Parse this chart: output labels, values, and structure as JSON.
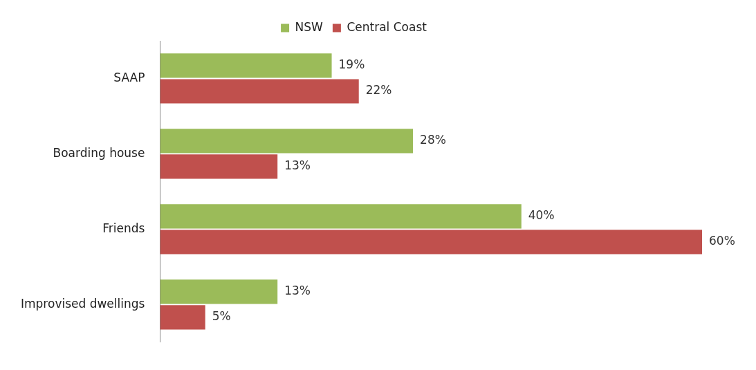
{
  "chart_data": {
    "type": "bar",
    "orientation": "horizontal",
    "categories": [
      "SAAP",
      "Boarding house",
      "Friends",
      "Improvised dwellings"
    ],
    "series": [
      {
        "name": "NSW",
        "color": "#9bbb59",
        "values": [
          19,
          28,
          40,
          13
        ],
        "value_labels": [
          "19%",
          "28%",
          "40%",
          "13%"
        ]
      },
      {
        "name": "Central Coast",
        "color": "#c0504d",
        "values": [
          22,
          13,
          60,
          5
        ],
        "value_labels": [
          "22%",
          "13%",
          "60%",
          "5%"
        ]
      }
    ],
    "xlim": [
      0,
      60
    ],
    "legend": "top"
  }
}
